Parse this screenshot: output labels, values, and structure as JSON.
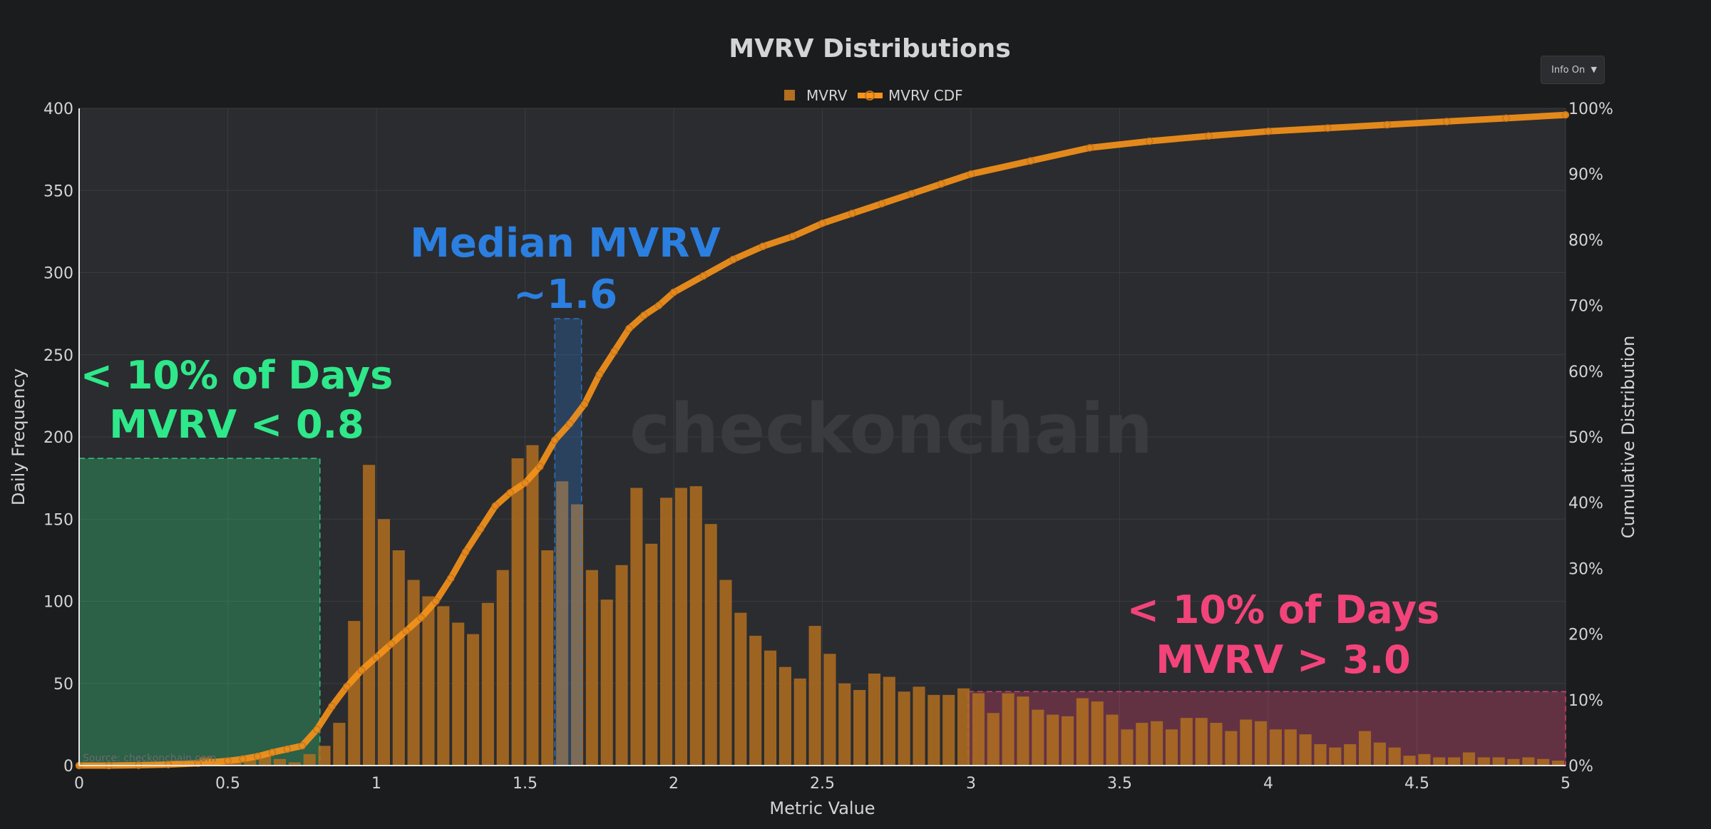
{
  "chart_data": {
    "type": "bar",
    "title": "MVRV Distributions",
    "xlabel": "Metric Value",
    "ylabel": "Daily Frequency",
    "y2label": "Cumulative Distribution",
    "xlim": [
      0,
      5
    ],
    "ylim": [
      0,
      400
    ],
    "y2lim": [
      0,
      100
    ],
    "xticks": [
      "0",
      "0.5",
      "1",
      "1.5",
      "2",
      "2.5",
      "3",
      "3.5",
      "4",
      "4.5",
      "5"
    ],
    "yticks": [
      "0",
      "50",
      "100",
      "150",
      "200",
      "250",
      "300",
      "350",
      "400"
    ],
    "y2ticks": [
      "0%",
      "10%",
      "20%",
      "30%",
      "40%",
      "50%",
      "60%",
      "70%",
      "80%",
      "90%",
      "100%"
    ],
    "grid": true,
    "legend_position": "top-center",
    "bin_width": 0.05,
    "series": [
      {
        "name": "MVRV",
        "kind": "bar",
        "color": "#b26f1f",
        "x_start": 0,
        "values": [
          0,
          0,
          0,
          0,
          1,
          2,
          3,
          2,
          5,
          2,
          3,
          5,
          7,
          4,
          2,
          7,
          12,
          26,
          88,
          183,
          150,
          131,
          113,
          103,
          97,
          87,
          80,
          99,
          119,
          187,
          195,
          131,
          173,
          159,
          119,
          101,
          122,
          169,
          135,
          163,
          169,
          170,
          147,
          113,
          93,
          79,
          70,
          60,
          53,
          85,
          68,
          50,
          46,
          56,
          54,
          45,
          48,
          43,
          43,
          47,
          44,
          32,
          44,
          42,
          34,
          31,
          30,
          41,
          39,
          31,
          22,
          26,
          27,
          22,
          29,
          29,
          26,
          21,
          28,
          27,
          22,
          22,
          19,
          13,
          11,
          13,
          21,
          14,
          11,
          6,
          7,
          5,
          5,
          8,
          5,
          5,
          4,
          5,
          4,
          3
        ]
      },
      {
        "name": "MVRV CDF",
        "kind": "line",
        "color": "#f7931a",
        "y_axis": "right",
        "x": [
          0.0,
          0.1,
          0.2,
          0.3,
          0.4,
          0.5,
          0.55,
          0.6,
          0.65,
          0.7,
          0.75,
          0.8,
          0.85,
          0.9,
          0.95,
          1.0,
          1.05,
          1.1,
          1.15,
          1.2,
          1.25,
          1.3,
          1.35,
          1.4,
          1.45,
          1.5,
          1.55,
          1.6,
          1.65,
          1.7,
          1.75,
          1.8,
          1.85,
          1.9,
          1.95,
          2.0,
          2.1,
          2.2,
          2.3,
          2.4,
          2.5,
          2.6,
          2.7,
          2.8,
          2.9,
          3.0,
          3.2,
          3.4,
          3.6,
          3.8,
          4.0,
          4.2,
          4.4,
          4.6,
          4.8,
          5.0
        ],
        "values": [
          0.0,
          0.0,
          0.05,
          0.15,
          0.35,
          0.7,
          1.0,
          1.4,
          2.0,
          2.5,
          3.0,
          5.5,
          9.0,
          12.0,
          14.5,
          16.5,
          18.5,
          20.5,
          22.5,
          25.0,
          28.5,
          32.5,
          36.0,
          39.5,
          41.5,
          43.0,
          45.5,
          49.5,
          52.0,
          55.0,
          59.5,
          63.0,
          66.5,
          68.5,
          70.0,
          72.0,
          74.5,
          77.0,
          79.0,
          80.5,
          82.5,
          84.0,
          85.5,
          87.0,
          88.5,
          90.0,
          92.0,
          94.0,
          95.0,
          95.8,
          96.5,
          97.0,
          97.5,
          98.0,
          98.5,
          99.0
        ]
      }
    ],
    "annotations": {
      "low_line1": "< 10% of Days",
      "low_line2": "MVRV < 0.8",
      "median_line1": "Median MVRV",
      "median_line2": "~1.6",
      "high_line1": "< 10% of Days",
      "high_line2": "MVRV > 3.0",
      "low_color": "#2ee88a",
      "median_color": "#2b7fe0",
      "high_color": "#f2447a",
      "low_zone": [
        0,
        0.81,
        0,
        187
      ],
      "median_zone": [
        1.6,
        1.69,
        0,
        272
      ],
      "high_zone": [
        2.99,
        5,
        0,
        45
      ]
    },
    "watermark": "checkonchain",
    "source": "Source: checkonchain.com"
  },
  "controls": {
    "info_toggle": "Info On"
  },
  "colors": {
    "background": "#1b1c1e",
    "plot_background": "#2b2c2f",
    "text": "#d4d4d4",
    "grid": "#3a3b3e"
  }
}
